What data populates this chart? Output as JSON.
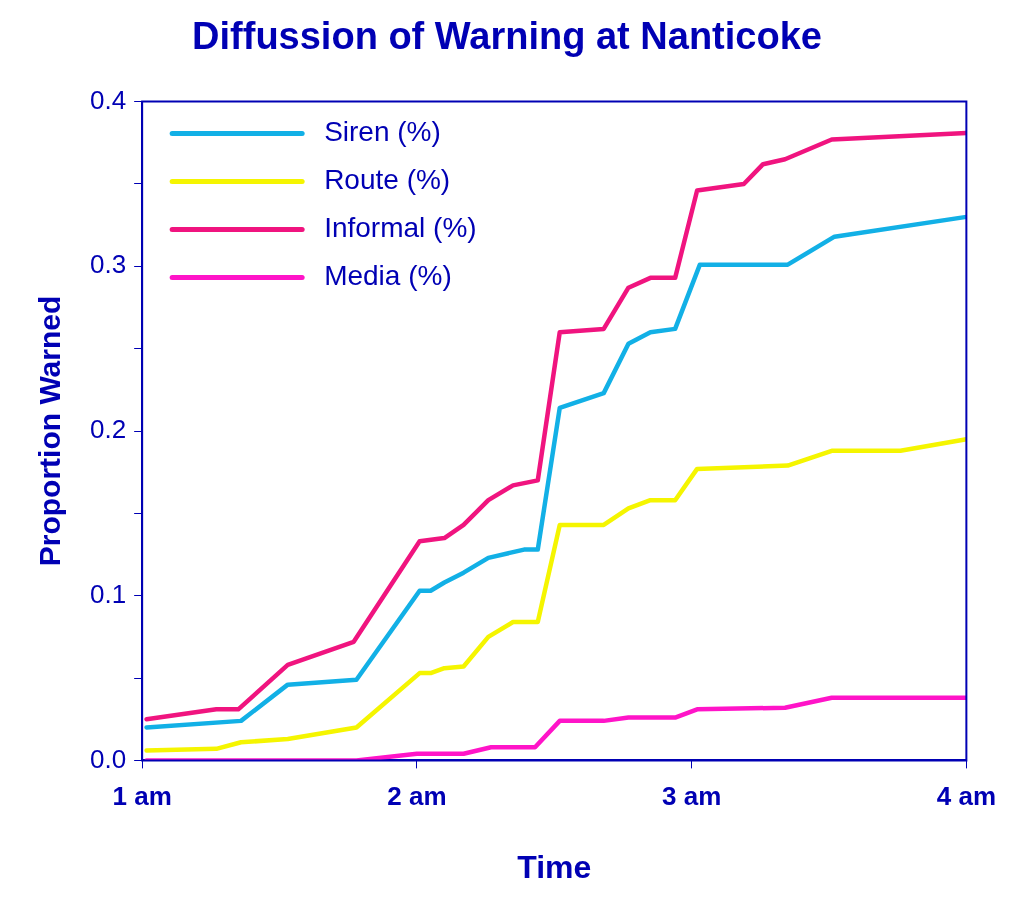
{
  "chart_data": {
    "type": "line",
    "title": "Diffussion of Warning at Nanticoke",
    "xlabel": "Time",
    "ylabel": "Proportion Warned",
    "xlim": [
      1,
      4
    ],
    "xticks": [
      {
        "value": 1,
        "label": "1 am"
      },
      {
        "value": 2,
        "label": "2 am"
      },
      {
        "value": 3,
        "label": "3 am"
      },
      {
        "value": 4,
        "label": "4 am"
      }
    ],
    "ylim": [
      0,
      0.4
    ],
    "yticks": [
      {
        "value": 0,
        "label": "0.0"
      },
      {
        "value": 0.05,
        "label": null
      },
      0.1,
      {
        "value": 0.15,
        "label": null
      },
      0.2,
      {
        "value": 0.25,
        "label": null
      },
      0.3,
      {
        "value": 0.35,
        "label": null
      },
      0.4
    ],
    "grid": false,
    "legend": "top left",
    "marker": "none",
    "line_style": "solid",
    "series": [
      {
        "name": "Siren (%)",
        "color": "#12b0e6",
        "x": [
          1.016,
          1.36,
          1.53,
          1.78,
          2.01,
          2.05,
          2.1,
          2.17,
          2.26,
          2.39,
          2.44,
          2.52,
          2.68,
          2.77,
          2.85,
          2.94,
          3.03,
          3.35,
          3.52,
          4.0
        ],
        "values": [
          0.02,
          0.024,
          0.046,
          0.049,
          0.103,
          0.103,
          0.108,
          0.114,
          0.123,
          0.128,
          0.128,
          0.214,
          0.223,
          0.253,
          0.26,
          0.262,
          0.301,
          0.301,
          0.318,
          0.33
        ]
      },
      {
        "name": "Route (%)",
        "color": "#f5f500",
        "x": [
          1.016,
          1.27,
          1.36,
          1.53,
          1.78,
          2.01,
          2.05,
          2.1,
          2.17,
          2.26,
          2.35,
          2.44,
          2.52,
          2.68,
          2.77,
          2.85,
          2.94,
          3.02,
          3.35,
          3.51,
          3.76,
          4.0
        ],
        "values": [
          0.006,
          0.007,
          0.011,
          0.013,
          0.02,
          0.053,
          0.053,
          0.056,
          0.057,
          0.075,
          0.084,
          0.084,
          0.143,
          0.143,
          0.153,
          0.158,
          0.158,
          0.177,
          0.179,
          0.188,
          0.188,
          0.195
        ]
      },
      {
        "name": "Informal (%)",
        "color": "#f0147f",
        "x": [
          1.016,
          1.27,
          1.35,
          1.53,
          1.77,
          2.01,
          2.1,
          2.17,
          2.26,
          2.35,
          2.44,
          2.52,
          2.68,
          2.77,
          2.85,
          2.94,
          3.02,
          3.19,
          3.26,
          3.34,
          3.51,
          4.0
        ],
        "values": [
          0.025,
          0.031,
          0.031,
          0.058,
          0.072,
          0.133,
          0.135,
          0.143,
          0.158,
          0.167,
          0.17,
          0.26,
          0.262,
          0.287,
          0.293,
          0.293,
          0.346,
          0.35,
          0.362,
          0.365,
          0.377,
          0.381
        ]
      },
      {
        "name": "Media (%)",
        "color": "#ff14c8",
        "x": [
          1.016,
          1.78,
          2.0,
          2.17,
          2.27,
          2.43,
          2.52,
          2.68,
          2.77,
          2.94,
          3.02,
          3.34,
          3.51,
          4.0
        ],
        "values": [
          0,
          0,
          0.004,
          0.004,
          0.008,
          0.008,
          0.024,
          0.024,
          0.026,
          0.026,
          0.031,
          0.032,
          0.038,
          0.038
        ]
      }
    ]
  }
}
